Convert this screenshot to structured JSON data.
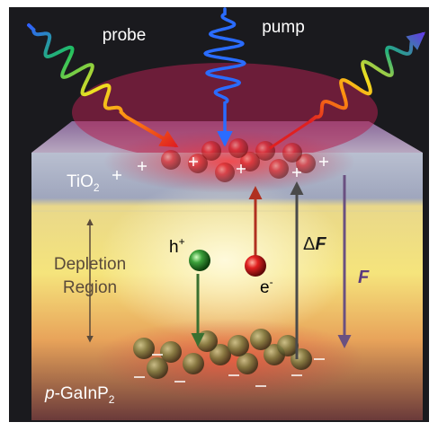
{
  "probe": "probe",
  "pump": "pump",
  "tio2": {
    "base": "TiO",
    "sub": "2"
  },
  "depletion_region": [
    "Depletion",
    "Region"
  ],
  "hole": {
    "base": "h",
    "sup": "+"
  },
  "electron": {
    "base": "e",
    "sup": "-"
  },
  "delta_f": {
    "delta": "Δ",
    "f": "F"
  },
  "field": "F",
  "substrate": {
    "italic": "p",
    "base": "-GaInP",
    "sub": "2"
  }
}
